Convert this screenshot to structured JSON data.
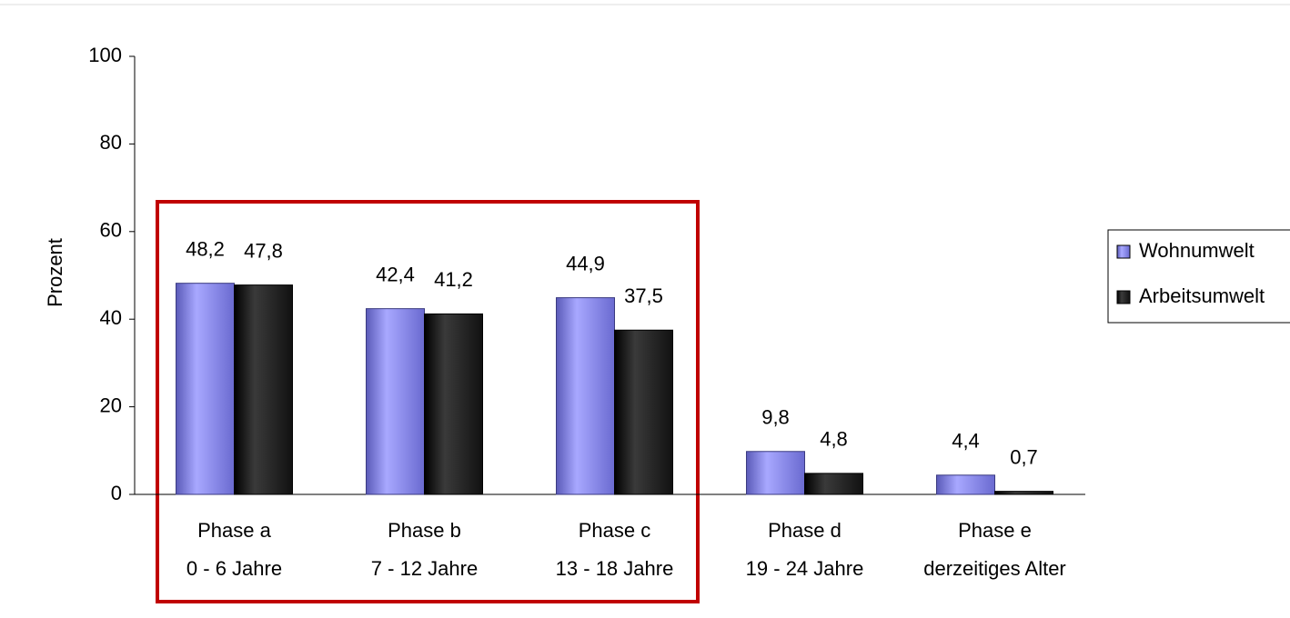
{
  "chart_data": {
    "type": "bar",
    "y_label": "Prozent",
    "categories": [
      [
        "Phase a",
        "0 - 6 Jahre"
      ],
      [
        "Phase b",
        "7 - 12 Jahre"
      ],
      [
        "Phase c",
        "13 - 18 Jahre"
      ],
      [
        "Phase d",
        "19 - 24 Jahre"
      ],
      [
        "Phase e",
        "derzeitiges Alter"
      ]
    ],
    "series": [
      {
        "name": "Wohnumwelt",
        "color": "#8f8ff0",
        "values": [
          48.2,
          42.4,
          44.9,
          9.8,
          4.4
        ],
        "value_labels": [
          "48,2",
          "42,4",
          "44,9",
          "9,8",
          "4,4"
        ]
      },
      {
        "name": "Arbeitsumwelt",
        "color": "#1c1c1c",
        "values": [
          47.8,
          41.2,
          37.5,
          4.8,
          0.7
        ],
        "value_labels": [
          "47,8",
          "41,2",
          "37,5",
          "4,8",
          "0,7"
        ]
      }
    ],
    "ylim": [
      0,
      100
    ],
    "yticks": [
      0,
      20,
      40,
      60,
      80,
      100
    ],
    "grid": false,
    "legend": "right"
  }
}
